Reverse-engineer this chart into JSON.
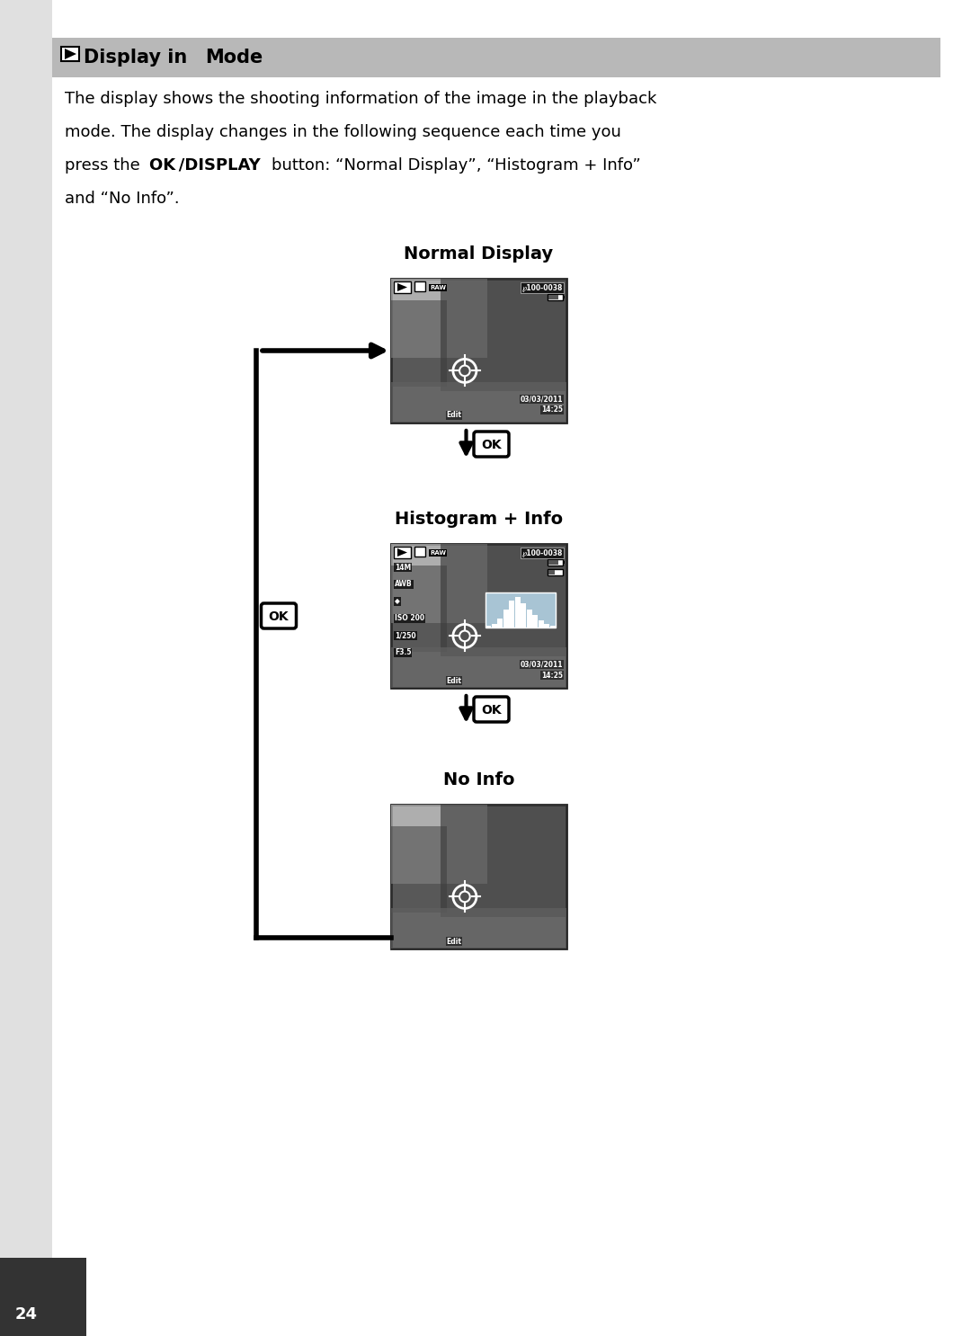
{
  "title_text": "Display in ► Mode",
  "title_bg": "#b8b8b8",
  "page_bg": "#ffffff",
  "sidebar_bg": "#e0e0e0",
  "label1": "Normal Display",
  "label2": "Histogram + Info",
  "label3": "No Info",
  "page_number": "24",
  "body_line1": "The display shows the shooting information of the image in the playback",
  "body_line2": "mode. The display changes in the following sequence each time you",
  "body_line3a": "press the ",
  "body_line3b": "OK /DISPLAY",
  "body_line3c": " button: “Normal Display”, “Histogram + Info”",
  "body_line4": "and “No Info”.",
  "screen_bg": "#787878",
  "screen_sky": "#cccccc",
  "screen_trees": "#3a3a3a",
  "screen_ground": "#606060",
  "screen_edge": "#222222",
  "ok_btn_bg": "#ffffff",
  "ok_btn_border": "#000000",
  "hist_bg": "#a8c4d4"
}
